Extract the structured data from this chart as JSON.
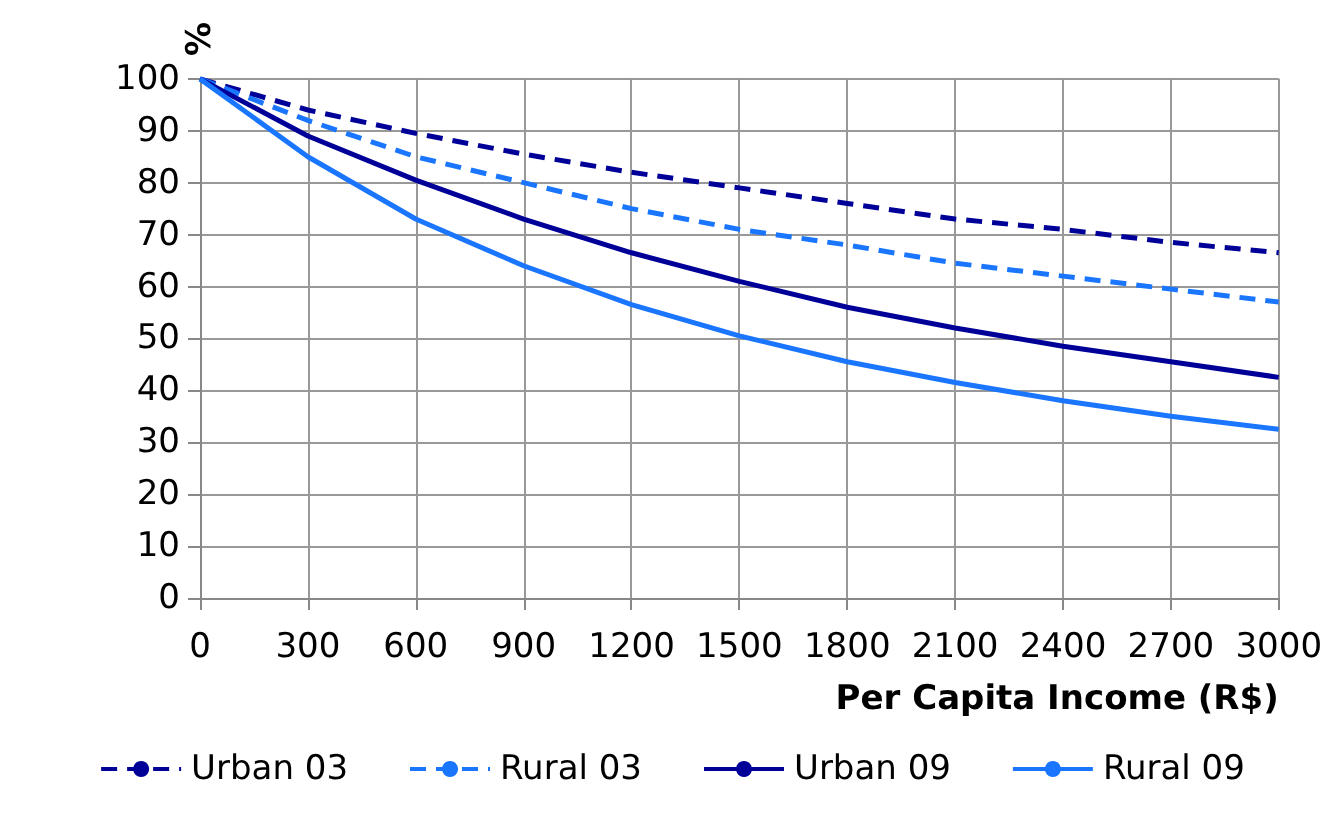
{
  "chart_data": {
    "type": "line",
    "xlabel": "Per Capita Income (R$)",
    "ylabel": "%",
    "x": [
      0,
      300,
      600,
      900,
      1200,
      1500,
      1800,
      2100,
      2400,
      2700,
      3000
    ],
    "series": [
      {
        "name": "Urban 03",
        "color": "#000099",
        "line_style": "dashed",
        "values": [
          100,
          94,
          89.5,
          85.5,
          82,
          79,
          76,
          73,
          71,
          68.5,
          66.5
        ]
      },
      {
        "name": "Rural 03",
        "color": "#1a75ff",
        "line_style": "dashed",
        "values": [
          100,
          92,
          85,
          80,
          75,
          71,
          68,
          64.5,
          62,
          59.5,
          57
        ]
      },
      {
        "name": "Urban 09",
        "color": "#000099",
        "line_style": "solid",
        "values": [
          100,
          89,
          80.5,
          73,
          66.5,
          61,
          56,
          52,
          48.5,
          45.5,
          42.5
        ]
      },
      {
        "name": "Rural 09",
        "color": "#1a75ff",
        "line_style": "solid",
        "values": [
          100,
          85,
          73,
          64,
          56.5,
          50.5,
          45.5,
          41.5,
          38,
          35,
          32.5
        ]
      }
    ],
    "xlim": [
      0,
      3000
    ],
    "xticks": [
      0,
      300,
      600,
      900,
      1200,
      1500,
      1800,
      2100,
      2400,
      2700,
      3000
    ],
    "ylim": [
      0,
      100
    ],
    "yticks": [
      0,
      10,
      20,
      30,
      40,
      50,
      60,
      70,
      80,
      90,
      100
    ],
    "grid": true,
    "legend": "bottom",
    "marker": "none"
  }
}
